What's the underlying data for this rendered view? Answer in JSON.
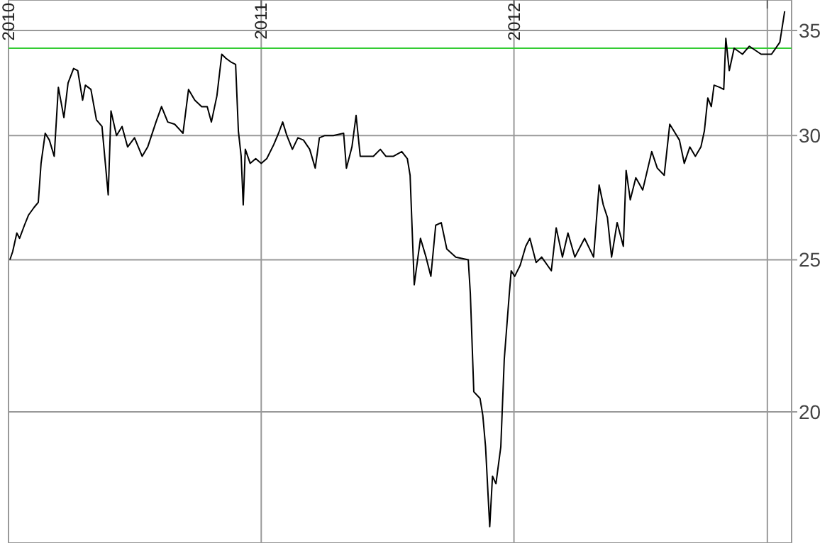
{
  "chart_data": {
    "type": "line",
    "log": "y",
    "grid": true,
    "marker": "none",
    "line_style": "solid",
    "xlim": [
      "2010-01-01",
      "2013-02-05"
    ],
    "xticks": [
      {
        "value": "2010-01-01",
        "label": "2010"
      },
      {
        "value": "2011-01-01",
        "label": "2011"
      },
      {
        "value": "2012-01-01",
        "label": "2012"
      },
      {
        "value": "2013-01-01",
        "label": null
      }
    ],
    "ylim": [
      16.5,
      36.6
    ],
    "yticks": [
      20,
      25,
      30,
      35
    ],
    "ref_lines": [
      {
        "axis": "y",
        "value": 34.1,
        "color": "#33cc33"
      }
    ],
    "x": [
      "2010-01-03",
      "2010-01-07",
      "2010-01-13",
      "2010-01-17",
      "2010-01-24",
      "2010-01-30",
      "2010-02-07",
      "2010-02-13",
      "2010-02-17",
      "2010-02-23",
      "2010-03-01",
      "2010-03-08",
      "2010-03-14",
      "2010-03-22",
      "2010-03-28",
      "2010-04-05",
      "2010-04-11",
      "2010-04-18",
      "2010-04-22",
      "2010-04-30",
      "2010-05-08",
      "2010-05-16",
      "2010-05-25",
      "2010-05-29",
      "2010-06-06",
      "2010-06-14",
      "2010-06-22",
      "2010-07-02",
      "2010-07-13",
      "2010-07-21",
      "2010-08-02",
      "2010-08-10",
      "2010-08-19",
      "2010-08-29",
      "2010-09-10",
      "2010-09-18",
      "2010-09-27",
      "2010-10-07",
      "2010-10-15",
      "2010-10-21",
      "2010-10-29",
      "2010-11-05",
      "2010-11-11",
      "2010-11-19",
      "2010-11-25",
      "2010-11-29",
      "2010-12-03",
      "2010-12-06",
      "2010-12-09",
      "2010-12-16",
      "2010-12-24",
      "2011-01-01",
      "2011-01-09",
      "2011-01-19",
      "2011-01-26",
      "2011-02-01",
      "2011-02-07",
      "2011-02-15",
      "2011-02-23",
      "2011-03-03",
      "2011-03-12",
      "2011-03-20",
      "2011-03-26",
      "2011-04-03",
      "2011-04-15",
      "2011-04-30",
      "2011-05-04",
      "2011-05-12",
      "2011-05-18",
      "2011-05-24",
      "2011-06-02",
      "2011-06-12",
      "2011-06-22",
      "2011-06-30",
      "2011-07-11",
      "2011-07-23",
      "2011-07-31",
      "2011-08-04",
      "2011-08-10",
      "2011-08-19",
      "2011-08-27",
      "2011-09-03",
      "2011-09-10",
      "2011-09-18",
      "2011-09-26",
      "2011-10-09",
      "2011-10-27",
      "2011-10-30",
      "2011-11-04",
      "2011-11-13",
      "2011-11-17",
      "2011-11-21",
      "2011-11-27",
      "2011-12-01",
      "2011-12-06",
      "2011-12-13",
      "2011-12-18",
      "2011-12-25",
      "2011-12-28",
      "2012-01-02",
      "2012-01-10",
      "2012-01-18",
      "2012-01-24",
      "2012-02-02",
      "2012-02-10",
      "2012-02-24",
      "2012-03-02",
      "2012-03-11",
      "2012-03-19",
      "2012-03-29",
      "2012-04-12",
      "2012-04-25",
      "2012-05-03",
      "2012-05-09",
      "2012-05-15",
      "2012-05-21",
      "2012-05-29",
      "2012-06-07",
      "2012-06-11",
      "2012-06-17",
      "2012-06-25",
      "2012-07-05",
      "2012-07-18",
      "2012-07-26",
      "2012-08-05",
      "2012-08-13",
      "2012-08-19",
      "2012-08-27",
      "2012-09-03",
      "2012-09-11",
      "2012-09-19",
      "2012-09-27",
      "2012-10-02",
      "2012-10-07",
      "2012-10-12",
      "2012-10-16",
      "2012-10-24",
      "2012-10-30",
      "2012-11-02",
      "2012-11-07",
      "2012-11-14",
      "2012-11-26",
      "2012-12-06",
      "2012-12-23",
      "2013-01-07",
      "2013-01-19",
      "2013-01-26"
    ],
    "series": [
      {
        "color": "#000000",
        "values": [
          25.0,
          25.3,
          26.0,
          25.8,
          26.3,
          26.7,
          27.0,
          27.2,
          28.8,
          30.1,
          29.8,
          29.1,
          32.2,
          30.8,
          32.4,
          33.1,
          33.0,
          31.6,
          32.3,
          32.1,
          30.7,
          30.4,
          27.5,
          31.1,
          30.0,
          30.4,
          29.5,
          29.9,
          29.1,
          29.5,
          30.6,
          31.3,
          30.6,
          30.5,
          30.1,
          32.1,
          31.6,
          31.3,
          31.3,
          30.6,
          31.8,
          33.8,
          33.6,
          33.4,
          33.3,
          30.2,
          29.1,
          27.1,
          29.4,
          28.8,
          29.0,
          28.8,
          29.0,
          29.6,
          30.1,
          30.6,
          30.0,
          29.4,
          29.9,
          29.8,
          29.4,
          28.6,
          29.9,
          30.0,
          30.0,
          30.1,
          28.6,
          29.5,
          30.9,
          29.1,
          29.1,
          29.1,
          29.4,
          29.1,
          29.1,
          29.3,
          29.0,
          28.3,
          24.1,
          25.8,
          25.1,
          24.4,
          26.3,
          26.4,
          25.4,
          25.1,
          25.0,
          23.8,
          20.6,
          20.4,
          19.9,
          19.0,
          16.9,
          18.2,
          18.0,
          19.0,
          21.6,
          23.7,
          24.6,
          24.4,
          24.8,
          25.5,
          25.8,
          24.9,
          25.1,
          24.6,
          26.2,
          25.1,
          26.0,
          25.1,
          25.8,
          25.1,
          27.9,
          27.1,
          26.6,
          25.1,
          26.4,
          25.5,
          28.5,
          27.3,
          28.2,
          27.7,
          29.3,
          28.6,
          28.3,
          30.5,
          30.2,
          29.8,
          28.8,
          29.5,
          29.1,
          29.5,
          30.2,
          31.7,
          31.3,
          32.3,
          32.2,
          32.1,
          34.6,
          33.0,
          34.1,
          33.8,
          34.2,
          33.8,
          33.8,
          34.4,
          36.0
        ]
      }
    ]
  }
}
